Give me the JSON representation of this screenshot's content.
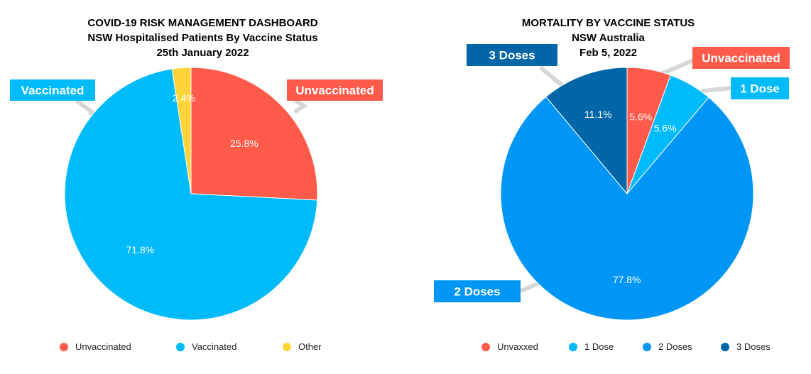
{
  "chart_data": [
    {
      "type": "pie",
      "title": "COVID-19 RISK MANAGEMENT DASHBOARD",
      "subtitle": "NSW Hospitalised Patients By Vaccine Status",
      "date": "25th January 2022",
      "slices": [
        {
          "name": "Unvaccinated",
          "value": 25.8,
          "label": "25.8%",
          "color": "#ff5a4a"
        },
        {
          "name": "Vaccinated",
          "value": 71.8,
          "label": "71.8%",
          "color": "#00bbf9"
        },
        {
          "name": "Other",
          "value": 2.4,
          "label": "2.4%",
          "color": "#ffd43b"
        }
      ],
      "callouts": [
        {
          "text": "Unvaccinated",
          "color": "#ff5a4a"
        },
        {
          "text": "Vaccinated",
          "color": "#00bbf9"
        }
      ],
      "legend": [
        "Unvaccinated",
        "Vaccinated",
        "Other"
      ],
      "legend_placement": "bottom"
    },
    {
      "type": "pie",
      "title": "MORTALITY BY VACCINE STATUS",
      "subtitle": "NSW Australia",
      "date": "Feb 5, 2022",
      "slices": [
        {
          "name": "Unvaxxed",
          "value": 5.6,
          "label": "5.6%",
          "color": "#ff5a4a"
        },
        {
          "name": "1 Dose",
          "value": 5.6,
          "label": "5.6%",
          "color": "#00bbf9"
        },
        {
          "name": "2 Doses",
          "value": 77.8,
          "label": "77.8%",
          "color": "#0096f5"
        },
        {
          "name": "3 Doses",
          "value": 11.1,
          "label": "11.1%",
          "color": "#0066a8"
        }
      ],
      "callouts": [
        {
          "text": "Unvaccinated",
          "color": "#ff5a4a"
        },
        {
          "text": "1 Dose",
          "color": "#00bbf9"
        },
        {
          "text": "2 Doses",
          "color": "#0096f5"
        },
        {
          "text": "3 Doses",
          "color": "#0066a8"
        }
      ],
      "legend": [
        "Unvaxxed",
        "1 Dose",
        "2 Doses",
        "3 Doses"
      ],
      "legend_placement": "bottom"
    }
  ]
}
